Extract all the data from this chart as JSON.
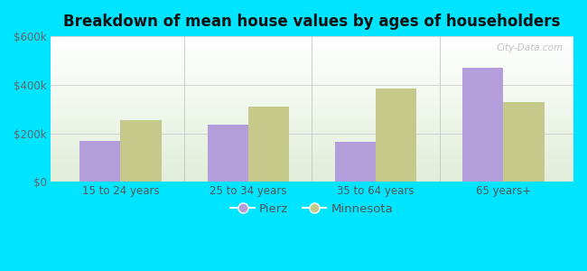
{
  "title": "Breakdown of mean house values by ages of householders",
  "categories": [
    "15 to 24 years",
    "25 to 34 years",
    "35 to 64 years",
    "65 years+"
  ],
  "pierz_values": [
    170000,
    235000,
    165000,
    470000
  ],
  "minnesota_values": [
    255000,
    310000,
    385000,
    330000
  ],
  "pierz_color": "#b39ddb",
  "minnesota_color": "#c5c98a",
  "background_outer": "#00e5ff",
  "ylim": [
    0,
    600000
  ],
  "yticks": [
    0,
    200000,
    400000,
    600000
  ],
  "ytick_labels": [
    "$0",
    "$200k",
    "$400k",
    "$600k"
  ],
  "bar_width": 0.32,
  "legend_labels": [
    "Pierz",
    "Minnesota"
  ],
  "watermark": "City-Data.com",
  "title_fontsize": 12,
  "tick_fontsize": 8.5,
  "legend_fontsize": 9.5
}
